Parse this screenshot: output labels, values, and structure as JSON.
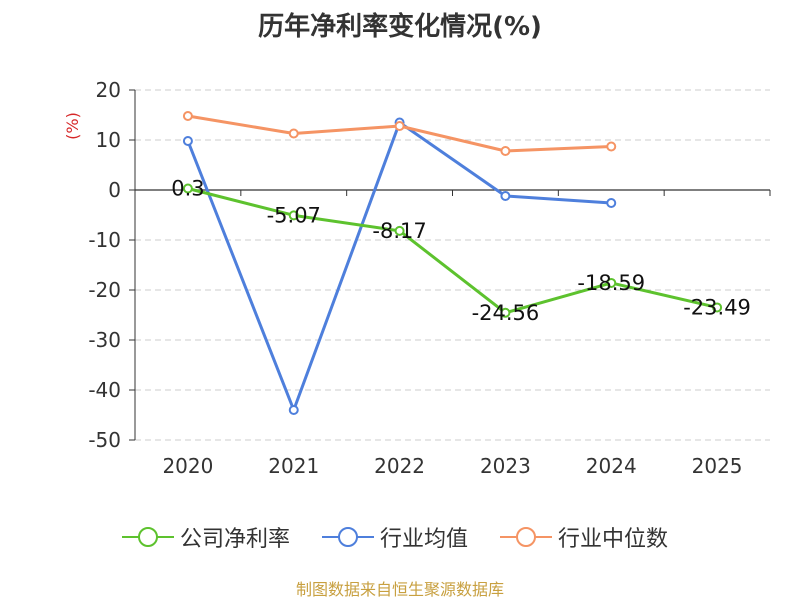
{
  "chart_data": {
    "type": "line",
    "title": "历年净利率变化情况(%)",
    "ylabel": "(%)",
    "categories": [
      "2020",
      "2021",
      "2022",
      "2023",
      "2024",
      "2025"
    ],
    "ylim": [
      -50,
      20
    ],
    "yticks": [
      20,
      10,
      0,
      -10,
      -20,
      -30,
      -40,
      -50
    ],
    "grid": true,
    "legend_position": "bottom",
    "series": [
      {
        "name": "公司净利率",
        "color": "#5dc22e",
        "values": [
          0.3,
          -5.07,
          -8.17,
          -24.56,
          -18.59,
          -23.49
        ],
        "labels": [
          "0.3",
          "-5.07",
          "-8.17",
          "-24.56",
          "-18.59",
          "-23.49"
        ]
      },
      {
        "name": "行业均值",
        "color": "#4e7fdc",
        "values": [
          9.8,
          -44,
          13.5,
          -1.2,
          -2.6,
          null
        ]
      },
      {
        "name": "行业中位数",
        "color": "#f59464",
        "values": [
          14.8,
          11.3,
          12.8,
          7.8,
          8.7,
          null
        ]
      }
    ]
  },
  "source": "制图数据来自恒生聚源数据库"
}
